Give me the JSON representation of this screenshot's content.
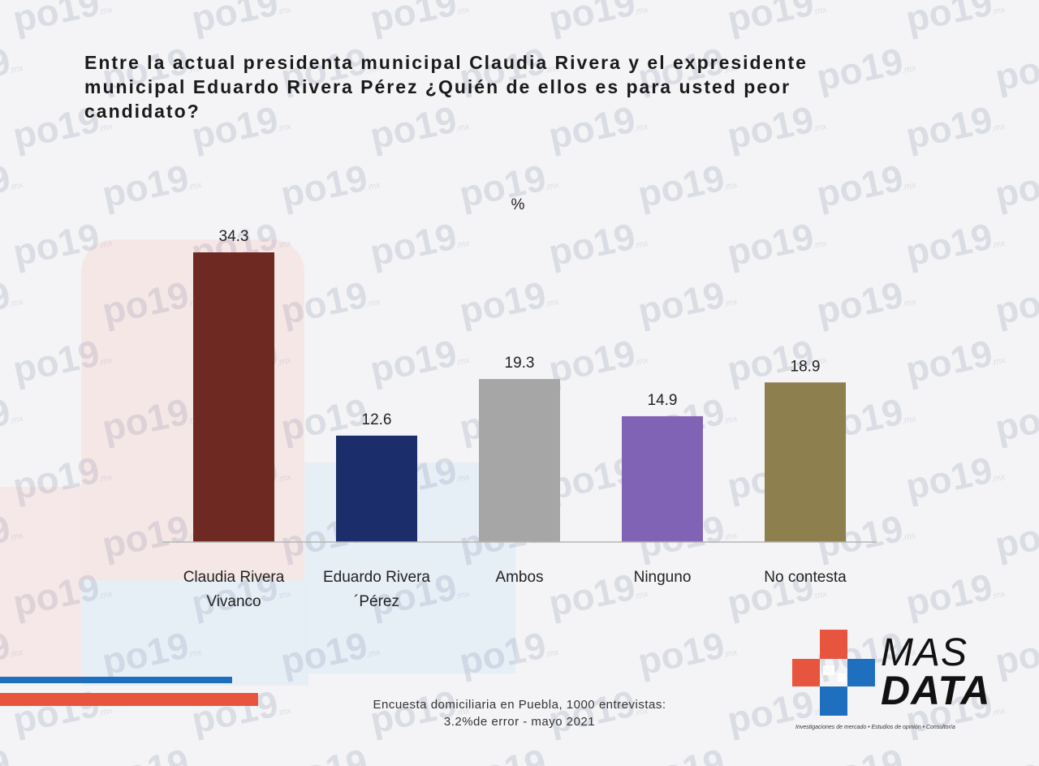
{
  "title_lines": [
    "Entre la actual presidenta municipal Claudia Rivera y el expresidente",
    "municipal Eduardo Rivera Pérez ¿Quién de ellos es para usted peor",
    "candidato?"
  ],
  "watermark_text": "po19",
  "watermark_suffix": ".mx",
  "chart_data": {
    "type": "bar",
    "unit_label": "%",
    "categories": [
      [
        "Claudia Rivera",
        "Vivanco"
      ],
      [
        "Eduardo Rivera",
        "´Pérez"
      ],
      [
        "Ambos"
      ],
      [
        "Ninguno"
      ],
      [
        "No contesta"
      ]
    ],
    "values": [
      34.3,
      12.6,
      19.3,
      14.9,
      18.9
    ],
    "value_labels": [
      "34.3",
      "12.6",
      "19.3",
      "14.9",
      "18.9"
    ],
    "colors": [
      "#6e2a22",
      "#1b2d6b",
      "#a6a6a6",
      "#8163b6",
      "#8e7f4e"
    ],
    "ylim": [
      0,
      34.3
    ],
    "grid": false,
    "legend": "none"
  },
  "footnote_lines": [
    "Encuesta domiciliaria en Puebla,  1000 entrevistas:",
    "3.2%de error - mayo 2021"
  ],
  "logo": {
    "line1": "MAS",
    "line2": "DATA",
    "tagline": "Investigaciones de mercado • Estudios de opinión • Consultoría",
    "colors": {
      "orange": "#e8553e",
      "blue": "#1f6fbf"
    }
  }
}
